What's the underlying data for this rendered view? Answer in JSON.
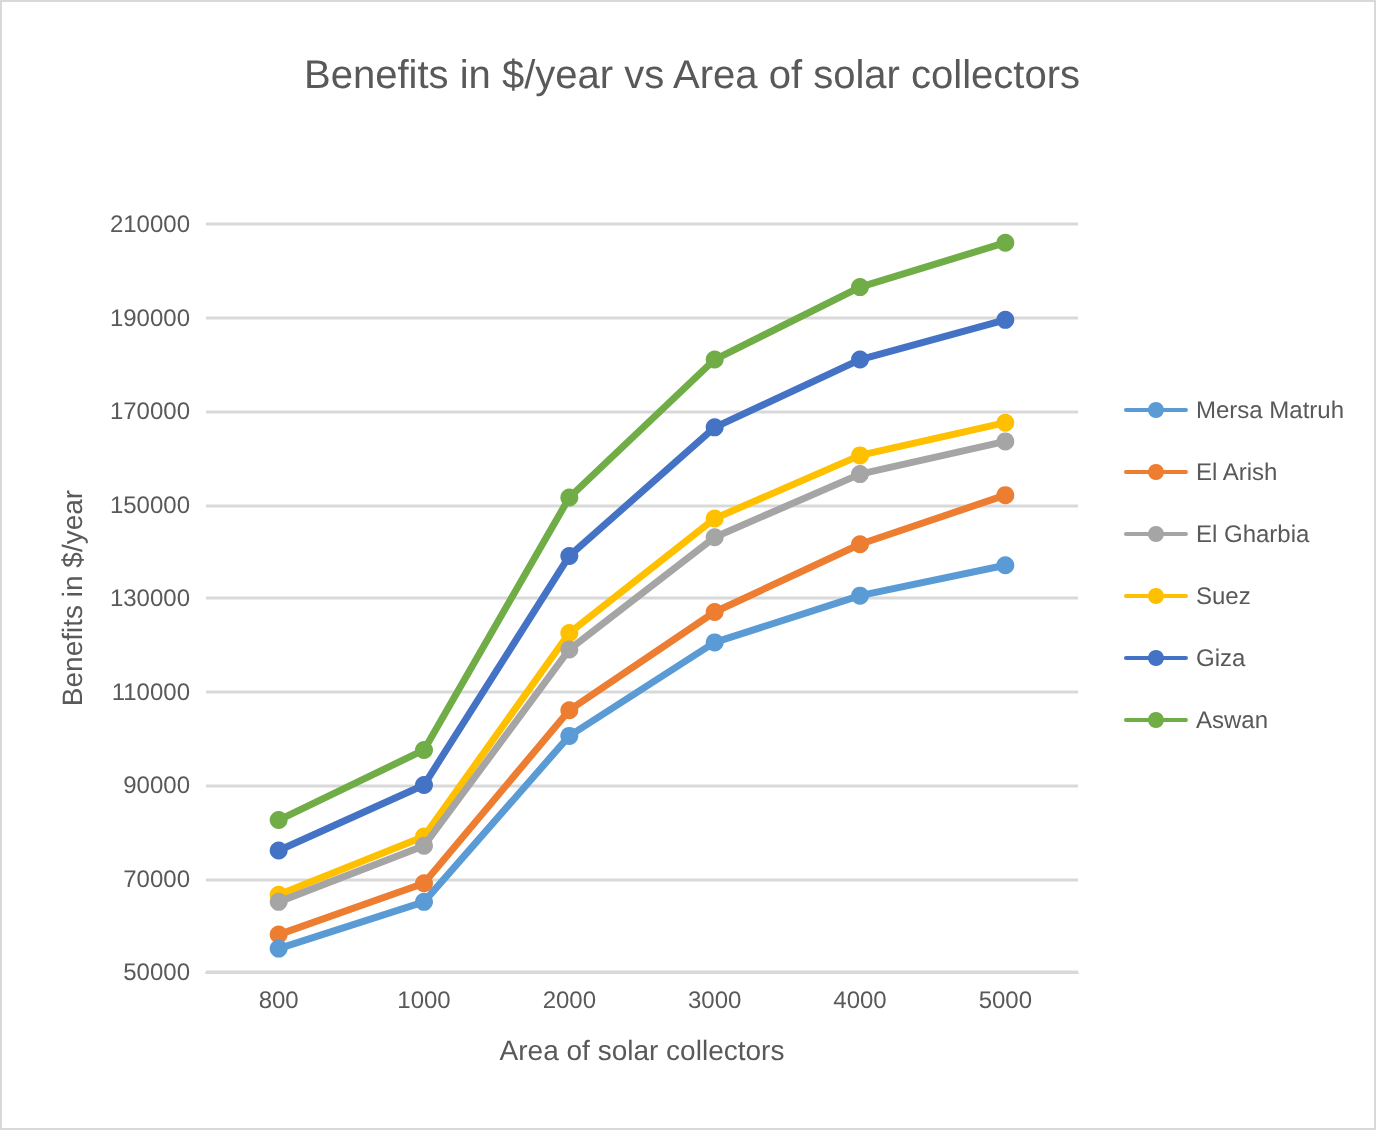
{
  "chart_data": {
    "type": "line",
    "title": "Benefits in $/year vs Area of solar collectors",
    "xlabel": "Area of solar collectors",
    "ylabel": "Benefits in $/year",
    "categories": [
      "800",
      "1000",
      "2000",
      "3000",
      "4000",
      "5000"
    ],
    "series": [
      {
        "name": "Mersa Matruh",
        "color": "#5b9bd5",
        "values": [
          55000,
          65000,
          100500,
          120500,
          130500,
          137000
        ]
      },
      {
        "name": "El Arish",
        "color": "#ed7d31",
        "values": [
          58000,
          69000,
          106000,
          127000,
          141500,
          152000
        ]
      },
      {
        "name": "El Gharbia",
        "color": "#a5a5a5",
        "values": [
          65000,
          77000,
          119000,
          143000,
          156500,
          163500
        ]
      },
      {
        "name": "Suez",
        "color": "#ffc000",
        "values": [
          66500,
          79000,
          122500,
          147000,
          160500,
          167500
        ]
      },
      {
        "name": "Giza",
        "color": "#4472c4",
        "values": [
          76000,
          90000,
          139000,
          166500,
          181000,
          189500
        ]
      },
      {
        "name": "Aswan",
        "color": "#70ad47",
        "values": [
          82500,
          97500,
          151500,
          181000,
          196500,
          206000
        ]
      }
    ],
    "ylim": [
      50000,
      210000
    ],
    "yticks": [
      50000,
      70000,
      90000,
      110000,
      130000,
      150000,
      170000,
      190000,
      210000
    ],
    "grid": "y",
    "legend": "right",
    "marker": "circle",
    "line_style": "solid"
  }
}
